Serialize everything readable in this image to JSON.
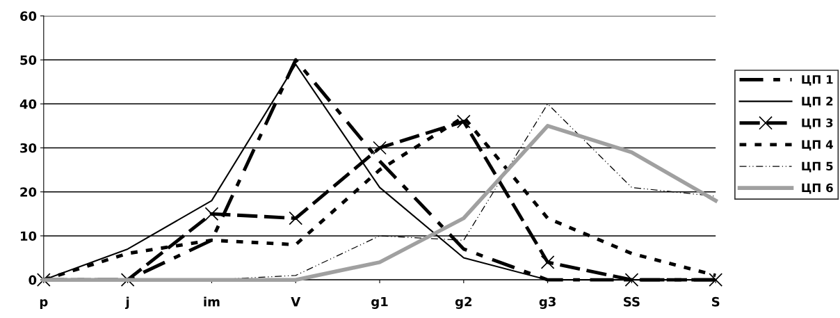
{
  "chart_data": {
    "type": "line",
    "categories": [
      "p",
      "j",
      "im",
      "V",
      "g1",
      "g2",
      "g3",
      "SS",
      "S"
    ],
    "ylim": [
      0,
      60
    ],
    "yticks": [
      0,
      10,
      20,
      30,
      40,
      50,
      60
    ],
    "grid": "y",
    "legend": "right",
    "series": [
      {
        "name": "ЦП 1",
        "color": "#000000",
        "line_style": "dashed",
        "marker": "none",
        "values": [
          0,
          0,
          9,
          50,
          27,
          7,
          0,
          0,
          0
        ]
      },
      {
        "name": "ЦП 2",
        "color": "#000000",
        "line_style": "solid",
        "marker": "none",
        "values": [
          0,
          7,
          18,
          49,
          21,
          5,
          0,
          0,
          0
        ]
      },
      {
        "name": "ЦП 3",
        "color": "#000000",
        "line_style": "dashed",
        "marker": "cross",
        "values": [
          0,
          0,
          15,
          14,
          30,
          36,
          4,
          0,
          0
        ]
      },
      {
        "name": "ЦП 4",
        "color": "#000000",
        "line_style": "dashed",
        "marker": "none",
        "values": [
          0,
          6,
          9,
          8,
          25,
          37,
          14,
          6,
          1
        ]
      },
      {
        "name": "ЦП 5",
        "color": "#000000",
        "line_style": "dotted",
        "marker": "none",
        "values": [
          0,
          0,
          0,
          1,
          10,
          9,
          40,
          21,
          19
        ]
      },
      {
        "name": "ЦП 6",
        "color": "#a0a0a0",
        "line_style": "solid",
        "marker": "none",
        "values": [
          0,
          0,
          0,
          0,
          4,
          14,
          35,
          29,
          18
        ]
      }
    ]
  }
}
